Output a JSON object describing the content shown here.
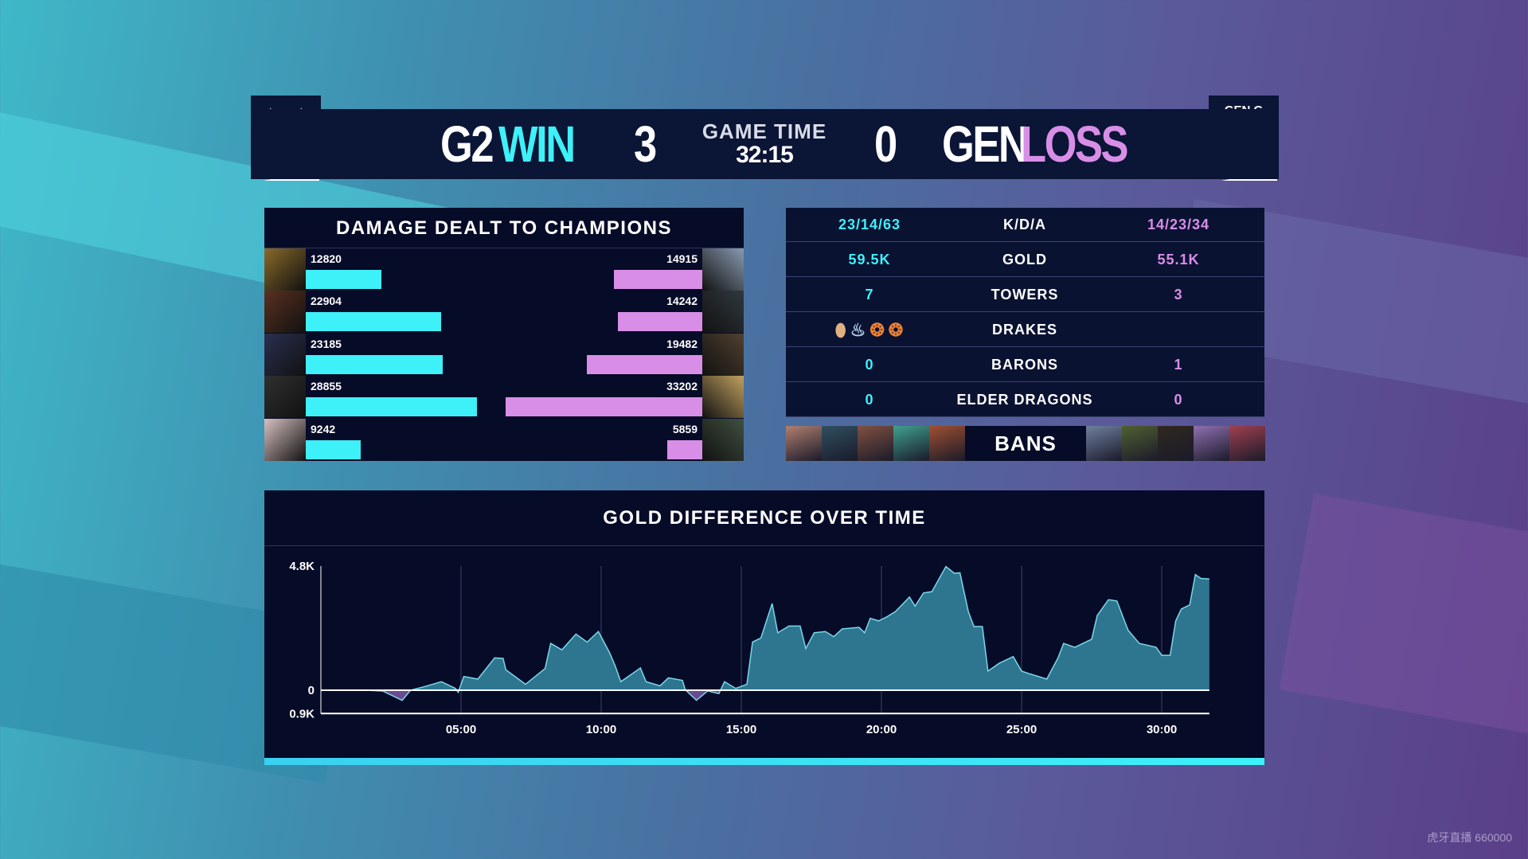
{
  "header": {
    "team_left": "G2",
    "result_left": "WIN",
    "score_left": "3",
    "game_time_label": "GAME TIME",
    "game_time": "32:15",
    "score_right": "0",
    "team_right": "GEN",
    "result_right": "LOSS",
    "logo_right_text": "GEN.G"
  },
  "colors": {
    "blue": "#3ef0f8",
    "pink": "#d88ee6",
    "panel": "#060b27",
    "area": "#2e7590"
  },
  "damage": {
    "title": "DAMAGE DEALT TO CHAMPIONS",
    "left": [
      12820,
      22904,
      23185,
      28855,
      9242
    ],
    "right": [
      14915,
      14242,
      19482,
      33202,
      5859
    ],
    "left_portrait_colors": [
      "#8a6a2a",
      "#5a3020",
      "#2a3050",
      "#303030",
      "#d8c0c0"
    ],
    "right_portrait_colors": [
      "#8a9ab0",
      "#303840",
      "#504030",
      "#c0a060",
      "#405040"
    ]
  },
  "stats": [
    {
      "label": "K/D/A",
      "left": "23/14/63",
      "right": "14/23/34"
    },
    {
      "label": "GOLD",
      "left": "59.5K",
      "right": "55.1K"
    },
    {
      "label": "TOWERS",
      "left": "7",
      "right": "3"
    },
    {
      "label": "DRAKES",
      "left": "",
      "right": ""
    },
    {
      "label": "BARONS",
      "left": "0",
      "right": "1"
    },
    {
      "label": "ELDER DRAGONS",
      "left": "0",
      "right": "0"
    }
  ],
  "drakes_left": [
    "mountain-drake-icon",
    "cloud-drake-icon",
    "infernal-drake-icon",
    "infernal-drake-icon"
  ],
  "bans": {
    "label": "BANS",
    "left_colors": [
      "#b08070",
      "#305060",
      "#805040",
      "#40a090",
      "#a05030"
    ],
    "right_colors": [
      "#7080a0",
      "#506030",
      "#302820",
      "#9070b0",
      "#a04050"
    ]
  },
  "watermark": "虎牙直播 660000",
  "chart_data": {
    "type": "area",
    "title": "GOLD DIFFERENCE OVER TIME",
    "y_tick_labels": [
      "4.8K",
      "0",
      "0.9K"
    ],
    "ylim": [
      -0.9,
      4.8
    ],
    "x_tick_labels": [
      "05:00",
      "10:00",
      "15:00",
      "20:00",
      "25:00",
      "30:00"
    ],
    "x_ticks": [
      5,
      10,
      15,
      20,
      25,
      30
    ],
    "xlim": [
      0,
      31.7
    ],
    "x_unit": "minutes",
    "y_unit": "thousand gold",
    "grid": "vertical",
    "points": [
      [
        0,
        0
      ],
      [
        1.6,
        0
      ],
      [
        2.2,
        -0.03
      ],
      [
        2.9,
        -0.39
      ],
      [
        3.2,
        0
      ],
      [
        3.7,
        0.14
      ],
      [
        4.3,
        0.33
      ],
      [
        4.8,
        0.07
      ],
      [
        4.9,
        -0.08
      ],
      [
        5.1,
        0.53
      ],
      [
        5.6,
        0.43
      ],
      [
        6.2,
        1.25
      ],
      [
        6.5,
        1.23
      ],
      [
        6.6,
        0.79
      ],
      [
        7.3,
        0.23
      ],
      [
        8.0,
        0.84
      ],
      [
        8.2,
        1.81
      ],
      [
        8.6,
        1.56
      ],
      [
        9.1,
        2.17
      ],
      [
        9.5,
        1.86
      ],
      [
        9.9,
        2.27
      ],
      [
        10.3,
        1.45
      ],
      [
        10.5,
        0.94
      ],
      [
        10.7,
        0.33
      ],
      [
        11.1,
        0.63
      ],
      [
        11.4,
        0.86
      ],
      [
        11.6,
        0.33
      ],
      [
        12.1,
        0.17
      ],
      [
        12.4,
        0.48
      ],
      [
        12.9,
        0.38
      ],
      [
        13.0,
        0.02
      ],
      [
        13.4,
        -0.39
      ],
      [
        13.8,
        -0.03
      ],
      [
        14.2,
        -0.13
      ],
      [
        14.4,
        0.33
      ],
      [
        14.8,
        0.07
      ],
      [
        15.2,
        0.23
      ],
      [
        15.4,
        1.86
      ],
      [
        15.7,
        2.02
      ],
      [
        16.1,
        3.35
      ],
      [
        16.3,
        2.22
      ],
      [
        16.7,
        2.48
      ],
      [
        17.1,
        2.48
      ],
      [
        17.3,
        1.61
      ],
      [
        17.6,
        2.22
      ],
      [
        18.0,
        2.27
      ],
      [
        18.3,
        2.07
      ],
      [
        18.6,
        2.37
      ],
      [
        19.2,
        2.43
      ],
      [
        19.4,
        2.22
      ],
      [
        19.6,
        2.78
      ],
      [
        19.9,
        2.68
      ],
      [
        20.2,
        2.84
      ],
      [
        20.5,
        3.04
      ],
      [
        21.0,
        3.6
      ],
      [
        21.2,
        3.25
      ],
      [
        21.5,
        3.76
      ],
      [
        21.8,
        3.81
      ],
      [
        22.3,
        4.78
      ],
      [
        22.6,
        4.52
      ],
      [
        22.8,
        4.54
      ],
      [
        23.1,
        3.04
      ],
      [
        23.3,
        2.46
      ],
      [
        23.6,
        2.46
      ],
      [
        23.8,
        0.74
      ],
      [
        24.2,
        1.04
      ],
      [
        24.7,
        1.3
      ],
      [
        25.0,
        0.74
      ],
      [
        25.3,
        0.63
      ],
      [
        25.9,
        0.43
      ],
      [
        26.3,
        1.25
      ],
      [
        26.5,
        1.81
      ],
      [
        26.9,
        1.66
      ],
      [
        27.5,
        1.97
      ],
      [
        27.7,
        2.89
      ],
      [
        28.1,
        3.5
      ],
      [
        28.4,
        3.45
      ],
      [
        28.8,
        2.32
      ],
      [
        29.2,
        1.81
      ],
      [
        29.8,
        1.66
      ],
      [
        30.0,
        1.35
      ],
      [
        30.3,
        1.35
      ],
      [
        30.5,
        2.68
      ],
      [
        30.7,
        3.14
      ],
      [
        31.0,
        3.3
      ],
      [
        31.2,
        4.47
      ],
      [
        31.4,
        4.32
      ],
      [
        31.7,
        4.3
      ]
    ]
  }
}
